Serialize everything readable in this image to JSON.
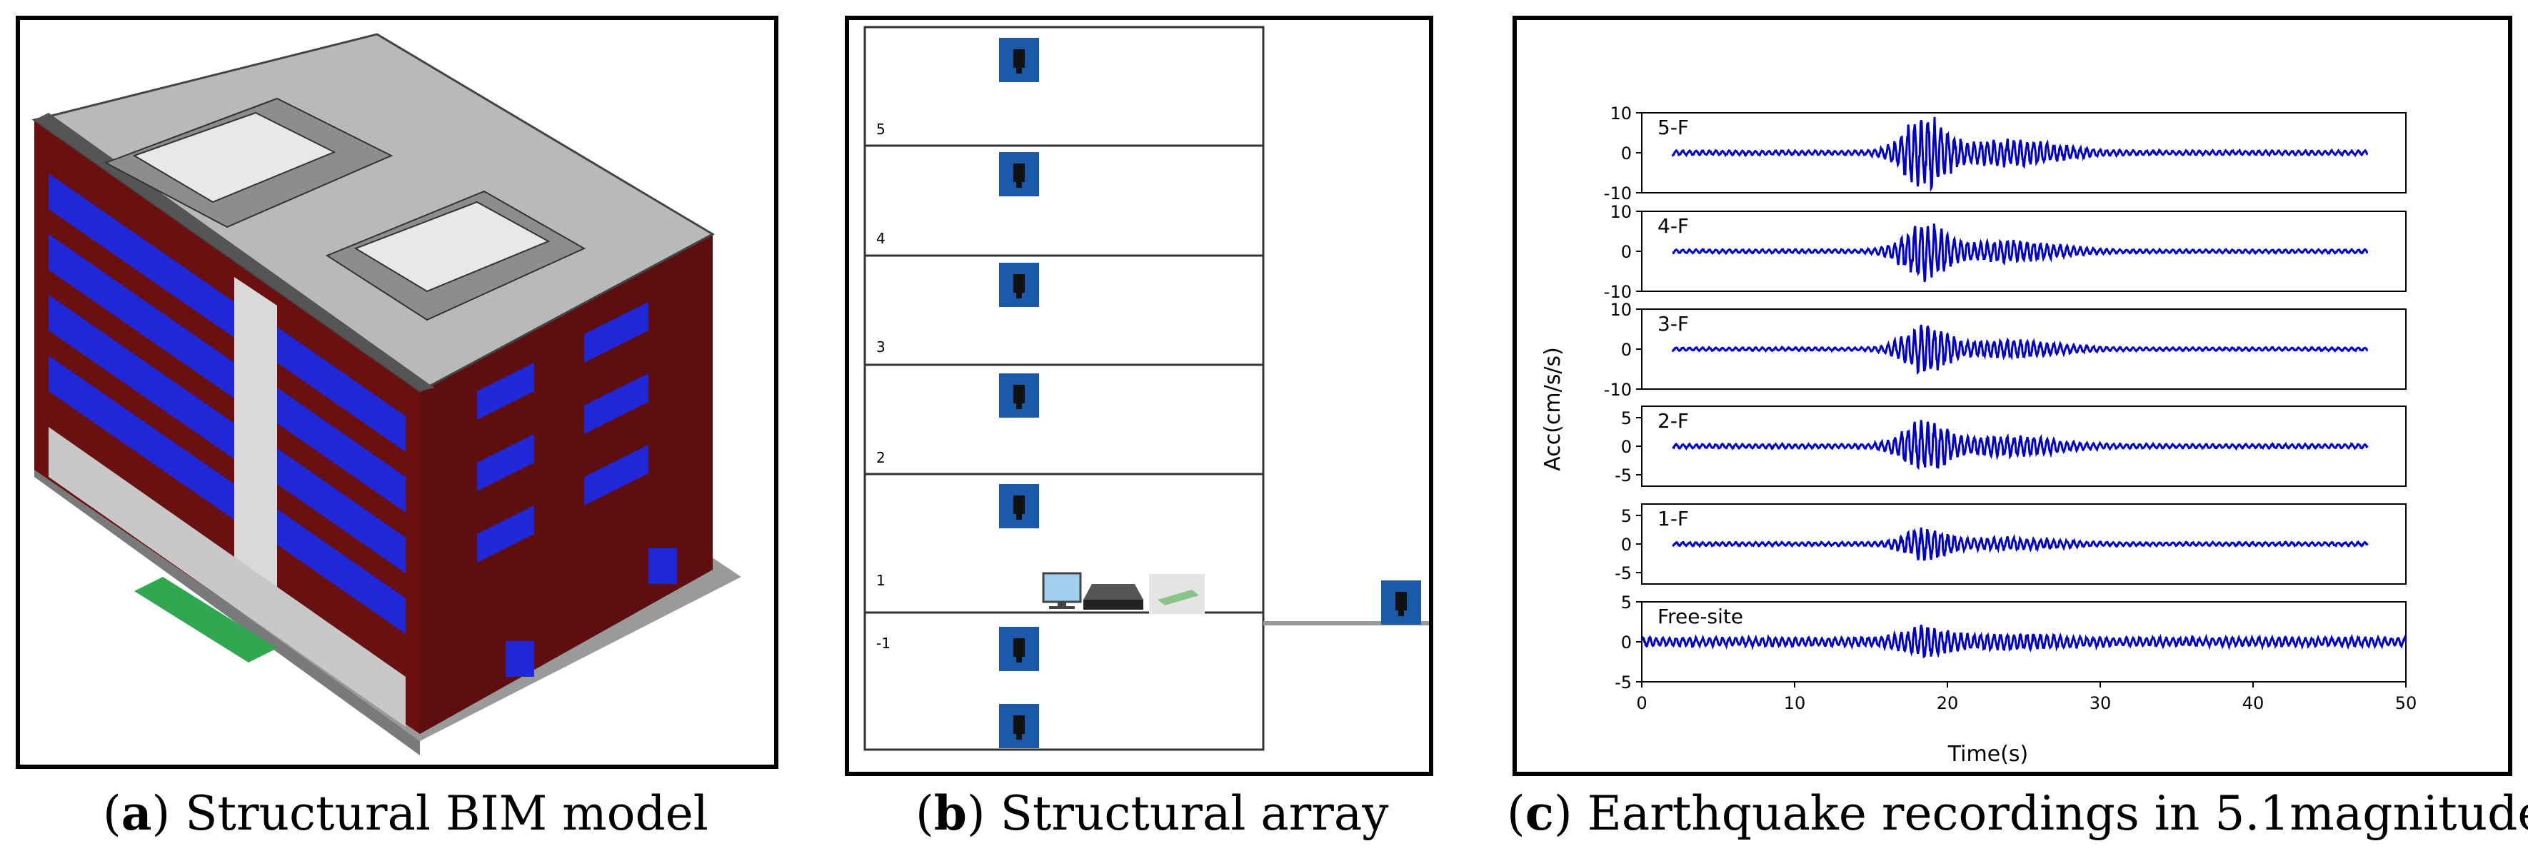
{
  "captions": {
    "a_letter": "a",
    "a_text": "Structural BIM model",
    "b_letter": "b",
    "b_text": "Structural array",
    "c_letter": "c",
    "c_text": "Earthquake recordings in 5.1magnitude"
  },
  "floors": [
    "5",
    "4",
    "3",
    "2",
    "1",
    "-1"
  ],
  "colors": {
    "wall_red": "#6b1010",
    "window_blue": "#1f27d6",
    "roof_gray": "#b9b9b9",
    "signal_blue": "#0000cc",
    "sensor_blue": "#1a5aa8"
  },
  "chart_data": {
    "type": "line",
    "xlabel": "Time(s)",
    "ylabel": "Acc(cm/s/s)",
    "xlim": [
      0,
      50
    ],
    "xticks": [
      "0",
      "10",
      "20",
      "30",
      "40",
      "50"
    ],
    "series": [
      {
        "name": "5-F",
        "ylim": [
          -10,
          10
        ],
        "yticks": [
          "10",
          "0",
          "-10"
        ],
        "amp": 9.0,
        "noise": 0.6,
        "start": 2,
        "end": 47.5
      },
      {
        "name": "4-F",
        "ylim": [
          -10,
          10
        ],
        "yticks": [
          "10",
          "0",
          "-10"
        ],
        "amp": 7.0,
        "noise": 0.5,
        "start": 2,
        "end": 47.5
      },
      {
        "name": "3-F",
        "ylim": [
          -10,
          10
        ],
        "yticks": [
          "10",
          "0",
          "-10"
        ],
        "amp": 6.0,
        "noise": 0.45,
        "start": 2,
        "end": 47.5
      },
      {
        "name": "2-F",
        "ylim": [
          -7,
          7
        ],
        "yticks": [
          "5",
          "0",
          "-5"
        ],
        "amp": 4.5,
        "noise": 0.4,
        "start": 2,
        "end": 47.5
      },
      {
        "name": "1-F",
        "ylim": [
          -7,
          7
        ],
        "yticks": [
          "5",
          "0",
          "-5"
        ],
        "amp": 2.5,
        "noise": 0.35,
        "start": 2,
        "end": 47.5
      },
      {
        "name": "Free-site",
        "ylim": [
          -5,
          5
        ],
        "yticks": [
          "5",
          "0",
          "-5"
        ],
        "amp": 1.5,
        "noise": 0.6,
        "start": 0,
        "end": 50
      }
    ]
  }
}
